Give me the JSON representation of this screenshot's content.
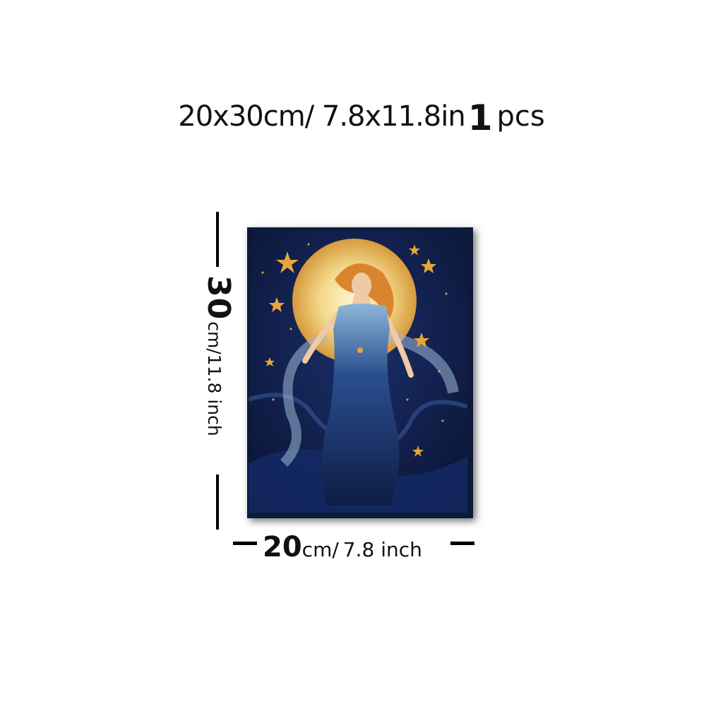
{
  "headline": {
    "size_text": "20x30cm/ 7.8x11.8in",
    "qty_number": "1",
    "qty_unit": "pcs"
  },
  "height_label": {
    "value": "30",
    "unit_text": "cm/11.8 inch"
  },
  "width_label": {
    "value": "20",
    "unit_text": "cm/",
    "inch_text": "7.8 inch"
  },
  "artwork": {
    "subject": "woman in blue gown under full moon with gold stars",
    "colors": {
      "night_sky": "#0d1a3a",
      "deep_blue": "#1b2f6b",
      "moon": "#f3d98a",
      "moon_glow": "#e8b24a",
      "hair": "#d9852e",
      "gown": "#2a4f8f",
      "gown_light": "#8fb6d8",
      "skin": "#f0c9a6",
      "star_gold": "#e8a53a"
    }
  }
}
